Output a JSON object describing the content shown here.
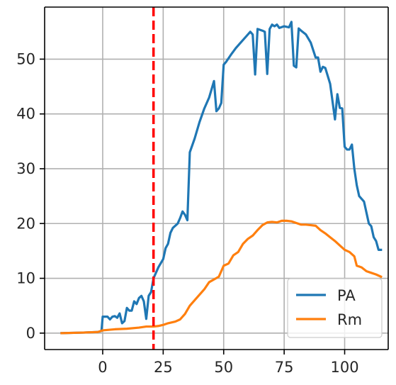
{
  "chart_data": {
    "type": "line",
    "title": "",
    "xlabel": "",
    "ylabel": "",
    "xlim": [
      -24,
      118
    ],
    "ylim": [
      -3,
      59.5
    ],
    "x_ticks": [
      0,
      25,
      50,
      75,
      100
    ],
    "y_ticks": [
      0,
      10,
      20,
      30,
      40,
      50
    ],
    "grid": true,
    "legend_position": "lower-right",
    "reference_line": {
      "x": 21,
      "color": "#ff0000",
      "style": "dashed"
    },
    "series": [
      {
        "name": "PA",
        "color": "#1f77b4",
        "points": [
          [
            -17,
            0
          ],
          [
            -8,
            0.1
          ],
          [
            -2,
            0.2
          ],
          [
            -0.5,
            0.4
          ],
          [
            0,
            3
          ],
          [
            1,
            3
          ],
          [
            2,
            3
          ],
          [
            3,
            2.5
          ],
          [
            4,
            3
          ],
          [
            5,
            3.1
          ],
          [
            6,
            2.8
          ],
          [
            7,
            3.6
          ],
          [
            8,
            1.8
          ],
          [
            9,
            2.2
          ],
          [
            10,
            4.6
          ],
          [
            11,
            4.1
          ],
          [
            12,
            4.1
          ],
          [
            13,
            5.8
          ],
          [
            14,
            5.3
          ],
          [
            15,
            6.4
          ],
          [
            16,
            6.8
          ],
          [
            17,
            5.8
          ],
          [
            18,
            2.6
          ],
          [
            19,
            6.8
          ],
          [
            20,
            7.5
          ],
          [
            21,
            10
          ],
          [
            23,
            12
          ],
          [
            25,
            13.5
          ],
          [
            26,
            15.5
          ],
          [
            27,
            16.3
          ],
          [
            28,
            18.3
          ],
          [
            29,
            19.2
          ],
          [
            31,
            20
          ],
          [
            32,
            21
          ],
          [
            33,
            22.2
          ],
          [
            34,
            21.6
          ],
          [
            35,
            20.6
          ],
          [
            36,
            33
          ],
          [
            38,
            35.5
          ],
          [
            40,
            38.5
          ],
          [
            42,
            41
          ],
          [
            44,
            43
          ],
          [
            46,
            46
          ],
          [
            47,
            40.5
          ],
          [
            48,
            41
          ],
          [
            49,
            42
          ],
          [
            50,
            49
          ],
          [
            51,
            49.5
          ],
          [
            53,
            50.8
          ],
          [
            55,
            52
          ],
          [
            57,
            53
          ],
          [
            59,
            54
          ],
          [
            61,
            55
          ],
          [
            62,
            54.5
          ],
          [
            63,
            47.2
          ],
          [
            64,
            55.5
          ],
          [
            66,
            55.2
          ],
          [
            67,
            55
          ],
          [
            68,
            47.3
          ],
          [
            69,
            55.5
          ],
          [
            70,
            56.3
          ],
          [
            71,
            56
          ],
          [
            72,
            56.3
          ],
          [
            73,
            55.7
          ],
          [
            75,
            56
          ],
          [
            77,
            55.8
          ],
          [
            78,
            56.8
          ],
          [
            79,
            48.8
          ],
          [
            80,
            48.5
          ],
          [
            81,
            55.6
          ],
          [
            82,
            55.2
          ],
          [
            84,
            54.5
          ],
          [
            86,
            53
          ],
          [
            88,
            50.3
          ],
          [
            89,
            50.3
          ],
          [
            90,
            47.7
          ],
          [
            91,
            48.6
          ],
          [
            92,
            48.4
          ],
          [
            94,
            45.5
          ],
          [
            96,
            39
          ],
          [
            97,
            43.6
          ],
          [
            98,
            41.1
          ],
          [
            99,
            41
          ],
          [
            100,
            34
          ],
          [
            101,
            33.5
          ],
          [
            102,
            33.5
          ],
          [
            103,
            34.4
          ],
          [
            104,
            30
          ],
          [
            105,
            27
          ],
          [
            106,
            25
          ],
          [
            108,
            24
          ],
          [
            110,
            20
          ],
          [
            111,
            19.5
          ],
          [
            112,
            17.5
          ],
          [
            113,
            16.8
          ],
          [
            114,
            15.2
          ],
          [
            115,
            15.2
          ]
        ]
      },
      {
        "name": "Rm",
        "color": "#ff7f0e",
        "points": [
          [
            -17,
            0
          ],
          [
            -8,
            0.1
          ],
          [
            -2,
            0.2
          ],
          [
            0,
            0.5
          ],
          [
            5,
            0.7
          ],
          [
            10,
            0.8
          ],
          [
            15,
            1
          ],
          [
            18,
            1.2
          ],
          [
            21,
            1.2
          ],
          [
            23,
            1.3
          ],
          [
            25,
            1.5
          ],
          [
            27,
            1.8
          ],
          [
            30,
            2.1
          ],
          [
            32,
            2.5
          ],
          [
            34,
            3.5
          ],
          [
            36,
            5
          ],
          [
            38,
            6
          ],
          [
            40,
            7
          ],
          [
            42,
            8
          ],
          [
            44,
            9.3
          ],
          [
            46,
            9.8
          ],
          [
            48,
            10.3
          ],
          [
            50,
            12.3
          ],
          [
            52,
            12.7
          ],
          [
            54,
            14.2
          ],
          [
            56,
            14.8
          ],
          [
            58,
            16.3
          ],
          [
            60,
            17.2
          ],
          [
            62,
            17.8
          ],
          [
            64,
            18.8
          ],
          [
            66,
            19.7
          ],
          [
            68,
            20.2
          ],
          [
            70,
            20.3
          ],
          [
            72,
            20.2
          ],
          [
            74,
            20.5
          ],
          [
            76,
            20.5
          ],
          [
            78,
            20.4
          ],
          [
            80,
            20.1
          ],
          [
            82,
            19.8
          ],
          [
            84,
            19.8
          ],
          [
            86,
            19.7
          ],
          [
            88,
            19.6
          ],
          [
            90,
            18.8
          ],
          [
            92,
            18.2
          ],
          [
            94,
            17.5
          ],
          [
            96,
            16.8
          ],
          [
            98,
            16
          ],
          [
            100,
            15.2
          ],
          [
            102,
            14.8
          ],
          [
            104,
            14
          ],
          [
            105,
            12.3
          ],
          [
            107,
            12
          ],
          [
            109,
            11.3
          ],
          [
            111,
            11
          ],
          [
            113,
            10.7
          ],
          [
            115,
            10.3
          ]
        ]
      }
    ]
  }
}
